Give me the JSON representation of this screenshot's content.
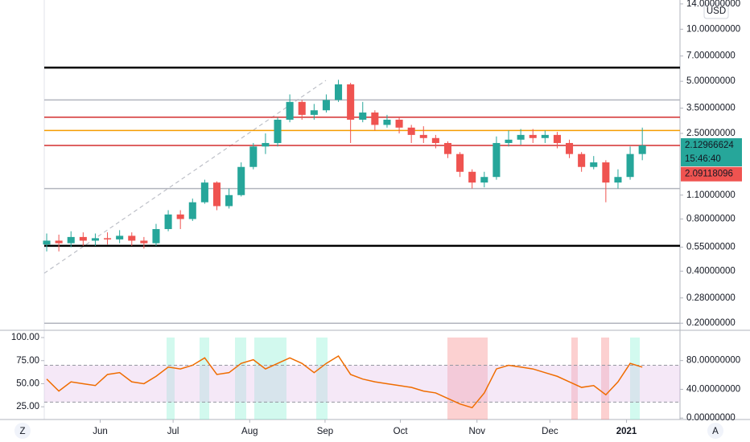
{
  "ui": {
    "currency": "USD",
    "left_button": "Z",
    "right_button": "A"
  },
  "chart_data": [
    {
      "type": "candlestick",
      "log_scale": true,
      "up_color": "#26a69a",
      "down_color": "#ef5350",
      "xlim": [
        -0.2,
        52.1
      ],
      "ylim": [
        0.184,
        14.75
      ],
      "xticks": [
        {
          "value": 4.4,
          "label": "Jun"
        },
        {
          "value": 10.4,
          "label": "Jul"
        },
        {
          "value": 16.7,
          "label": "Aug"
        },
        {
          "value": 22.9,
          "label": "Sep"
        },
        {
          "value": 29.1,
          "label": "Oct"
        },
        {
          "value": 35.4,
          "label": "Nov"
        },
        {
          "value": 41.4,
          "label": "Dec"
        },
        {
          "value": 47.7,
          "label": "2021"
        }
      ],
      "yticks": [
        {
          "value": 14,
          "label": "14.00000000"
        },
        {
          "value": 10,
          "label": "10.00000000"
        },
        {
          "value": 7,
          "label": "7.00000000"
        },
        {
          "value": 5,
          "label": "5.00000000"
        },
        {
          "value": 3.5,
          "label": "3.50000000"
        },
        {
          "value": 2.5,
          "label": "2.50000000"
        },
        {
          "value": 1.1,
          "label": "1.10000000"
        },
        {
          "value": 0.8,
          "label": "0.80000000"
        },
        {
          "value": 0.55,
          "label": "0.55000000"
        },
        {
          "value": 0.4,
          "label": "0.40000000"
        },
        {
          "value": 0.28,
          "label": "0.28000000"
        },
        {
          "value": 0.2,
          "label": "0.20000000"
        }
      ],
      "open": [
        0.57,
        0.6,
        0.58,
        0.63,
        0.6,
        0.62,
        0.61,
        0.64,
        0.6,
        0.58,
        0.7,
        0.85,
        0.8,
        1.0,
        1.3,
        0.95,
        1.1,
        1.6,
        2.1,
        2.2,
        3.0,
        3.8,
        3.2,
        3.4,
        3.9,
        4.8,
        3.0,
        3.3,
        2.8,
        3.0,
        2.7,
        2.45,
        2.35,
        2.2,
        1.9,
        1.5,
        1.3,
        1.4,
        2.2,
        2.3,
        2.45,
        2.35,
        2.45,
        2.2,
        1.9,
        1.6,
        1.7,
        1.3,
        1.4,
        1.9
      ],
      "high": [
        0.66,
        0.65,
        0.68,
        0.67,
        0.66,
        0.67,
        0.69,
        0.67,
        0.63,
        0.75,
        0.9,
        0.9,
        1.05,
        1.35,
        1.32,
        1.2,
        1.7,
        2.2,
        2.5,
        3.1,
        4.2,
        3.9,
        3.7,
        4.2,
        5.1,
        4.9,
        3.8,
        3.4,
        3.2,
        3.1,
        2.8,
        2.75,
        2.45,
        2.25,
        1.95,
        1.55,
        1.5,
        2.4,
        2.6,
        2.65,
        2.65,
        2.6,
        2.55,
        2.3,
        1.95,
        1.85,
        1.75,
        1.55,
        2.1,
        2.7
      ],
      "low": [
        0.52,
        0.52,
        0.55,
        0.56,
        0.56,
        0.57,
        0.58,
        0.56,
        0.54,
        0.56,
        0.68,
        0.7,
        0.78,
        0.98,
        0.9,
        0.92,
        1.08,
        1.55,
        1.9,
        2.1,
        2.9,
        3.0,
        3.0,
        3.3,
        3.8,
        2.2,
        2.9,
        2.6,
        2.7,
        2.5,
        2.2,
        2.2,
        2.05,
        1.8,
        1.4,
        1.2,
        1.22,
        1.35,
        2.1,
        2.15,
        2.2,
        2.2,
        2.05,
        1.8,
        1.5,
        1.55,
        1.0,
        1.2,
        1.35,
        1.75
      ],
      "close": [
        0.6,
        0.58,
        0.63,
        0.6,
        0.62,
        0.61,
        0.64,
        0.6,
        0.58,
        0.7,
        0.85,
        0.8,
        1.0,
        1.3,
        0.95,
        1.1,
        1.6,
        2.1,
        2.2,
        3.0,
        3.8,
        3.2,
        3.4,
        3.9,
        4.8,
        3.0,
        3.3,
        2.8,
        3.0,
        2.7,
        2.45,
        2.35,
        2.2,
        1.9,
        1.5,
        1.3,
        1.4,
        2.2,
        2.3,
        2.45,
        2.35,
        2.45,
        2.2,
        1.9,
        1.6,
        1.7,
        1.3,
        1.4,
        1.9,
        2.13
      ],
      "levels": [
        {
          "value": 6.0,
          "color": "#000000"
        },
        {
          "value": 3.9,
          "color": "#b2b5be"
        },
        {
          "value": 3.1,
          "color": "#d32f2f"
        },
        {
          "value": 2.6,
          "color": "#f59d00"
        },
        {
          "value": 2.13,
          "color": "#d32f2f"
        },
        {
          "value": 1.2,
          "color": "#b2b5be"
        },
        {
          "value": 0.56,
          "color": "#000000"
        },
        {
          "value": 0.2,
          "color": "#b2b5be"
        }
      ],
      "last_price": 2.12966624,
      "countdown": "15:46:40",
      "prev_close": 2.09118096
    },
    {
      "type": "line",
      "ylim": [
        -2,
        121
      ],
      "y2lim": [
        11.2,
        107
      ],
      "yticks": [
        {
          "value": 80,
          "label": "80.00000000"
        },
        {
          "value": 40,
          "label": "40.00000000"
        },
        {
          "value": 0,
          "label": "0.00000000"
        }
      ],
      "y2ticks": [
        {
          "value": 100,
          "label": "100.00"
        },
        {
          "value": 75,
          "label": "75.00"
        },
        {
          "value": 50,
          "label": "50.00"
        },
        {
          "value": 25,
          "label": "25.00"
        }
      ],
      "bands": [
        70,
        30
      ],
      "series": [
        {
          "color": "#ef6c00",
          "axis": "y2",
          "values": [
            55,
            42,
            52,
            50,
            48,
            60,
            62,
            52,
            50,
            58,
            68,
            66,
            70,
            78,
            60,
            62,
            72,
            76,
            66,
            72,
            78,
            72,
            62,
            72,
            80,
            60,
            55,
            52,
            50,
            48,
            46,
            42,
            40,
            34,
            28,
            24,
            40,
            66,
            70,
            68,
            66,
            62,
            58,
            52,
            46,
            48,
            38,
            52,
            72,
            68
          ]
        }
      ]
    }
  ]
}
